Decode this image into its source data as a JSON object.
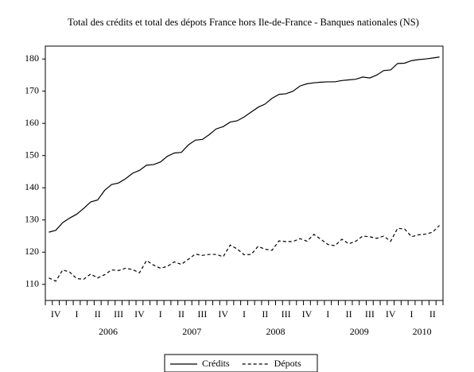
{
  "chart_data": {
    "type": "line",
    "title": "Total des crédits et total des dépots France hors Ile-de-France - Banques nationales (NS)",
    "quarter_labels": [
      "IV",
      "I",
      "II",
      "III",
      "IV",
      "I",
      "II",
      "III",
      "IV",
      "I",
      "II",
      "III",
      "IV",
      "I",
      "II",
      "III",
      "IV",
      "I",
      "II"
    ],
    "year_labels": [
      "2006",
      "2007",
      "2008",
      "2009",
      "2010"
    ],
    "series": [
      {
        "name": "Crédits",
        "color": "#000000",
        "style": "solid",
        "values": [
          126.2,
          126.8,
          129.2,
          130.6,
          131.8,
          133.6,
          135.6,
          136.2,
          139.2,
          141.0,
          141.5,
          142.8,
          144.5,
          145.4,
          147.0,
          147.2,
          148.0,
          149.8,
          150.8,
          151.0,
          153.3,
          154.8,
          155.0,
          156.5,
          158.3,
          159.0,
          160.4,
          160.8,
          162.0,
          163.5,
          165.0,
          166.0,
          167.8,
          169.0,
          169.2,
          170.0,
          171.6,
          172.3,
          172.6,
          172.8,
          172.9,
          172.9,
          173.3,
          173.5,
          173.7,
          174.4,
          174.1,
          175.0,
          176.4,
          176.6,
          178.6,
          178.7,
          179.5,
          179.8,
          180.0,
          180.3,
          180.6
        ]
      },
      {
        "name": "Dépots",
        "color": "#000000",
        "style": "dashed",
        "values": [
          112.0,
          111.0,
          114.5,
          113.8,
          111.8,
          111.6,
          113.2,
          112.0,
          113.0,
          114.5,
          114.3,
          115.0,
          114.6,
          113.6,
          117.4,
          116.0,
          115.0,
          115.6,
          117.0,
          116.2,
          117.8,
          119.4,
          119.0,
          119.3,
          119.3,
          118.6,
          122.2,
          121.0,
          119.2,
          119.3,
          121.8,
          120.9,
          120.6,
          123.5,
          123.3,
          123.3,
          124.2,
          123.4,
          125.5,
          124.0,
          122.4,
          122.0,
          124.0,
          122.6,
          123.4,
          125.0,
          124.8,
          124.3,
          125.0,
          123.4,
          127.4,
          127.2,
          124.8,
          125.4,
          125.6,
          126.2,
          128.3
        ]
      }
    ],
    "ylim": [
      105,
      184
    ],
    "yticks": [
      110,
      120,
      130,
      140,
      150,
      160,
      170,
      180
    ],
    "grid": false
  }
}
